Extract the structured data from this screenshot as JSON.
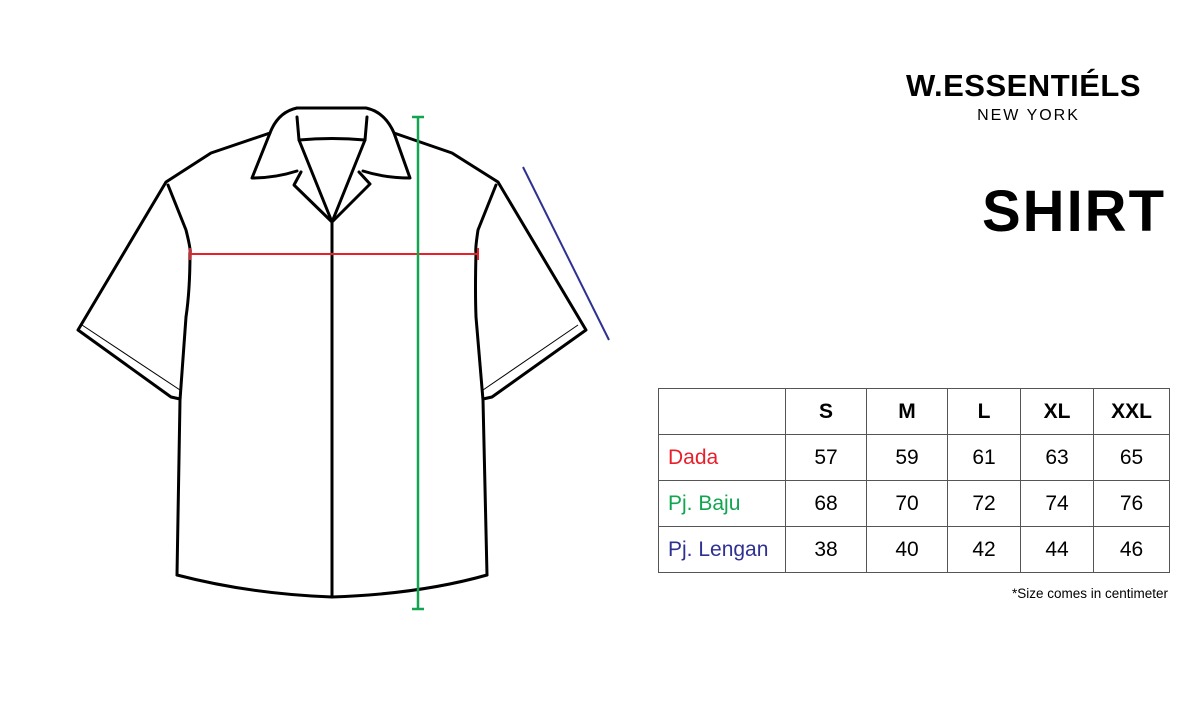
{
  "brand": {
    "name": "W.ESSENTIÉLS",
    "city": "NEW YORK"
  },
  "title": "SHIRT",
  "colors": {
    "chest": "#e8202a",
    "length": "#12a550",
    "sleeve": "#2e3192"
  },
  "table": {
    "sizes": [
      "S",
      "M",
      "L",
      "XL",
      "XXL"
    ],
    "rows": [
      {
        "label": "Dada",
        "values": [
          "57",
          "59",
          "61",
          "63",
          "65"
        ]
      },
      {
        "label": "Pj. Baju",
        "values": [
          "68",
          "70",
          "72",
          "74",
          "76"
        ]
      },
      {
        "label": "Pj. Lengan",
        "values": [
          "38",
          "40",
          "42",
          "44",
          "46"
        ]
      }
    ]
  },
  "note": "*Size comes in centimeter"
}
